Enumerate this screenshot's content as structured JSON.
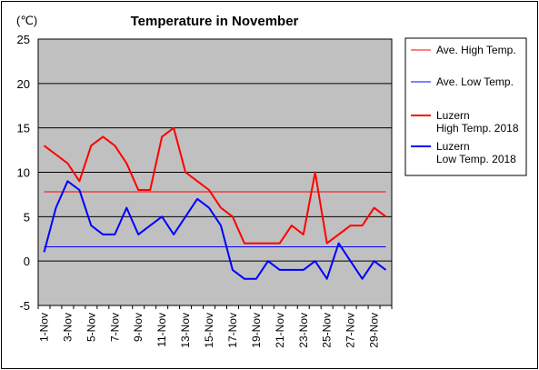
{
  "chart_data": {
    "type": "line",
    "title": "Temperature in November",
    "unit_label": "(℃)",
    "ylim": [
      -5,
      25
    ],
    "yticks": [
      25,
      20,
      15,
      10,
      5,
      0,
      -5
    ],
    "grid": "horizontal",
    "legend_position": "right",
    "categories": [
      "1-Nov",
      "2-Nov",
      "3-Nov",
      "4-Nov",
      "5-Nov",
      "6-Nov",
      "7-Nov",
      "8-Nov",
      "9-Nov",
      "10-Nov",
      "11-Nov",
      "12-Nov",
      "13-Nov",
      "14-Nov",
      "15-Nov",
      "16-Nov",
      "17-Nov",
      "18-Nov",
      "19-Nov",
      "20-Nov",
      "21-Nov",
      "22-Nov",
      "23-Nov",
      "24-Nov",
      "25-Nov",
      "26-Nov",
      "27-Nov",
      "28-Nov",
      "29-Nov",
      "30-Nov"
    ],
    "xtick_labels": [
      "1-Nov",
      "3-Nov",
      "5-Nov",
      "7-Nov",
      "9-Nov",
      "11-Nov",
      "13-Nov",
      "15-Nov",
      "17-Nov",
      "19-Nov",
      "21-Nov",
      "23-Nov",
      "25-Nov",
      "27-Nov",
      "29-Nov"
    ],
    "series": [
      {
        "name": "Ave. High Temp.",
        "color": "#ff0000",
        "style": "thin",
        "values": [
          7.8,
          7.8,
          7.8,
          7.8,
          7.8,
          7.8,
          7.8,
          7.8,
          7.8,
          7.8,
          7.8,
          7.8,
          7.8,
          7.8,
          7.8,
          7.8,
          7.8,
          7.8,
          7.8,
          7.8,
          7.8,
          7.8,
          7.8,
          7.8,
          7.8,
          7.8,
          7.8,
          7.8,
          7.8,
          7.8
        ]
      },
      {
        "name": "Ave. Low Temp.",
        "color": "#0000ff",
        "style": "thin",
        "values": [
          1.6,
          1.6,
          1.6,
          1.6,
          1.6,
          1.6,
          1.6,
          1.6,
          1.6,
          1.6,
          1.6,
          1.6,
          1.6,
          1.6,
          1.6,
          1.6,
          1.6,
          1.6,
          1.6,
          1.6,
          1.6,
          1.6,
          1.6,
          1.6,
          1.6,
          1.6,
          1.6,
          1.6,
          1.6,
          1.6
        ]
      },
      {
        "name": "Luzern High Temp. 2018",
        "legend_lines": [
          "Luzern",
          "High Temp. 2018"
        ],
        "color": "#ff0000",
        "style": "thick",
        "values": [
          13,
          12,
          11,
          9,
          13,
          14,
          13,
          11,
          8,
          8,
          14,
          15,
          10,
          9,
          8,
          6,
          5,
          2,
          2,
          2,
          2,
          4,
          3,
          10,
          2,
          3,
          4,
          4,
          6,
          5
        ]
      },
      {
        "name": "Luzern Low Temp. 2018",
        "legend_lines": [
          "Luzern",
          "Low Temp. 2018"
        ],
        "color": "#0000ff",
        "style": "thick",
        "values": [
          1,
          6,
          9,
          8,
          4,
          3,
          3,
          6,
          3,
          4,
          5,
          3,
          5,
          7,
          6,
          4,
          -1,
          -2,
          -2,
          0,
          -1,
          -1,
          -1,
          0,
          -2,
          2,
          0,
          -2,
          0,
          -1
        ]
      }
    ]
  }
}
